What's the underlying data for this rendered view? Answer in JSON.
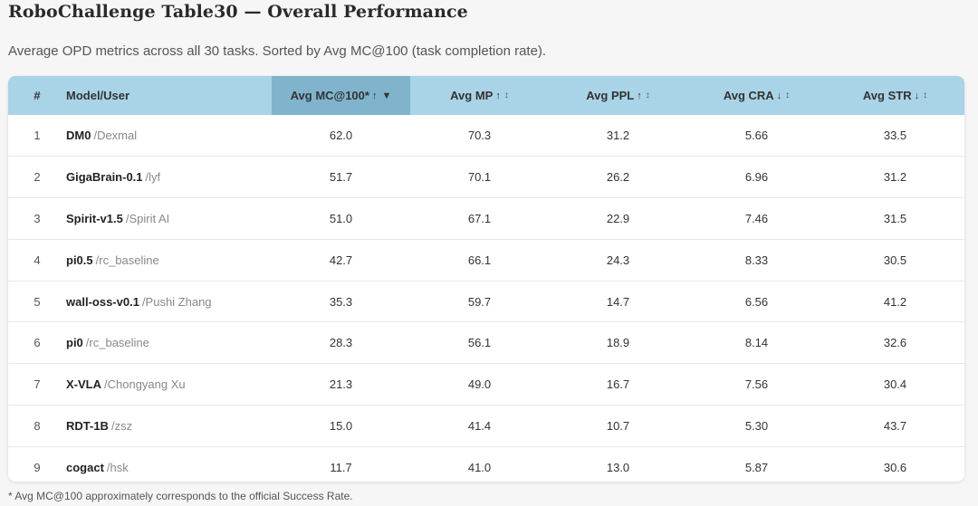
{
  "title": "RoboChallenge Table30 — Overall Performance",
  "subtitle": "Average OPD metrics across all 30 tasks. Sorted by Avg MC@100 (task completion rate).",
  "table": {
    "headers": {
      "rank": "#",
      "model": "Model/User",
      "mc100": "Avg MC@100*",
      "mp": "Avg MP",
      "ppl": "Avg PPL",
      "cra": "Avg CRA",
      "str": "Avg STR"
    },
    "direction_glyphs": {
      "mc100": "↑",
      "mp": "↑",
      "ppl": "↑",
      "cra": "↓",
      "str": "↓"
    },
    "sort_glyphs": {
      "active": "▼",
      "toggle": "↕"
    },
    "sorted_column": "mc100",
    "rows": [
      {
        "rank": "1",
        "model": "DM0",
        "user": "/Dexmal",
        "mc100": "62.0",
        "mp": "70.3",
        "ppl": "31.2",
        "cra": "5.66",
        "str": "33.5"
      },
      {
        "rank": "2",
        "model": "GigaBrain-0.1",
        "user": "/lyf",
        "mc100": "51.7",
        "mp": "70.1",
        "ppl": "26.2",
        "cra": "6.96",
        "str": "31.2"
      },
      {
        "rank": "3",
        "model": "Spirit-v1.5",
        "user": "/Spirit AI",
        "mc100": "51.0",
        "mp": "67.1",
        "ppl": "22.9",
        "cra": "7.46",
        "str": "31.5"
      },
      {
        "rank": "4",
        "model": "pi0.5",
        "user": "/rc_baseline",
        "mc100": "42.7",
        "mp": "66.1",
        "ppl": "24.3",
        "cra": "8.33",
        "str": "30.5"
      },
      {
        "rank": "5",
        "model": "wall-oss-v0.1",
        "user": "/Pushi Zhang",
        "mc100": "35.3",
        "mp": "59.7",
        "ppl": "14.7",
        "cra": "6.56",
        "str": "41.2"
      },
      {
        "rank": "6",
        "model": "pi0",
        "user": "/rc_baseline",
        "mc100": "28.3",
        "mp": "56.1",
        "ppl": "18.9",
        "cra": "8.14",
        "str": "32.6"
      },
      {
        "rank": "7",
        "model": "X-VLA",
        "user": "/Chongyang Xu",
        "mc100": "21.3",
        "mp": "49.0",
        "ppl": "16.7",
        "cra": "7.56",
        "str": "30.4"
      },
      {
        "rank": "8",
        "model": "RDT-1B",
        "user": "/zsz",
        "mc100": "15.0",
        "mp": "41.4",
        "ppl": "10.7",
        "cra": "5.30",
        "str": "43.7"
      },
      {
        "rank": "9",
        "model": "cogact",
        "user": "/hsk",
        "mc100": "11.7",
        "mp": "41.0",
        "ppl": "13.0",
        "cra": "5.87",
        "str": "30.6"
      }
    ]
  },
  "footnote": "* Avg MC@100 approximately corresponds to the official Success Rate.",
  "colors": {
    "header_bg": "#a9d3e6",
    "sorted_header_bg": "#7fb4cc",
    "rank_gold": "#c9a227",
    "rank_silver": "#9c9c9c",
    "rank_bronze": "#c27b2a"
  }
}
